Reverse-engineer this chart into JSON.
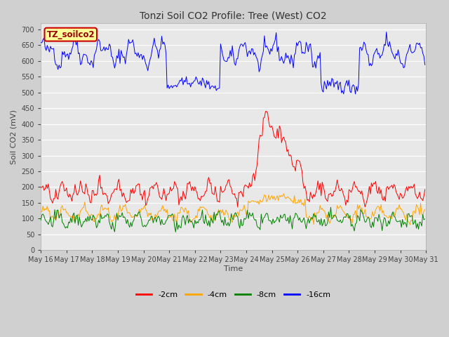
{
  "title": "Tonzi Soil CO2 Profile: Tree (West) CO2",
  "xlabel": "Time",
  "ylabel": "Soil CO2 (mV)",
  "ylim": [
    0,
    720
  ],
  "yticks": [
    0,
    50,
    100,
    150,
    200,
    250,
    300,
    350,
    400,
    450,
    500,
    550,
    600,
    650,
    700
  ],
  "legend_labels": [
    "-2cm",
    "-4cm",
    "-8cm",
    "-16cm"
  ],
  "legend_colors": [
    "red",
    "orange",
    "green",
    "blue"
  ],
  "fig_bg_color": "#d0d0d0",
  "plot_bg": "#e8e8e8",
  "grid_color": "#ffffff",
  "label_box_color": "#ffff99",
  "label_box_edge": "#cc0000",
  "label_text_color": "#990000",
  "label_text": "TZ_soilco2",
  "n_points": 360,
  "title_fontsize": 10,
  "axis_label_fontsize": 8,
  "tick_fontsize": 7,
  "legend_fontsize": 8
}
